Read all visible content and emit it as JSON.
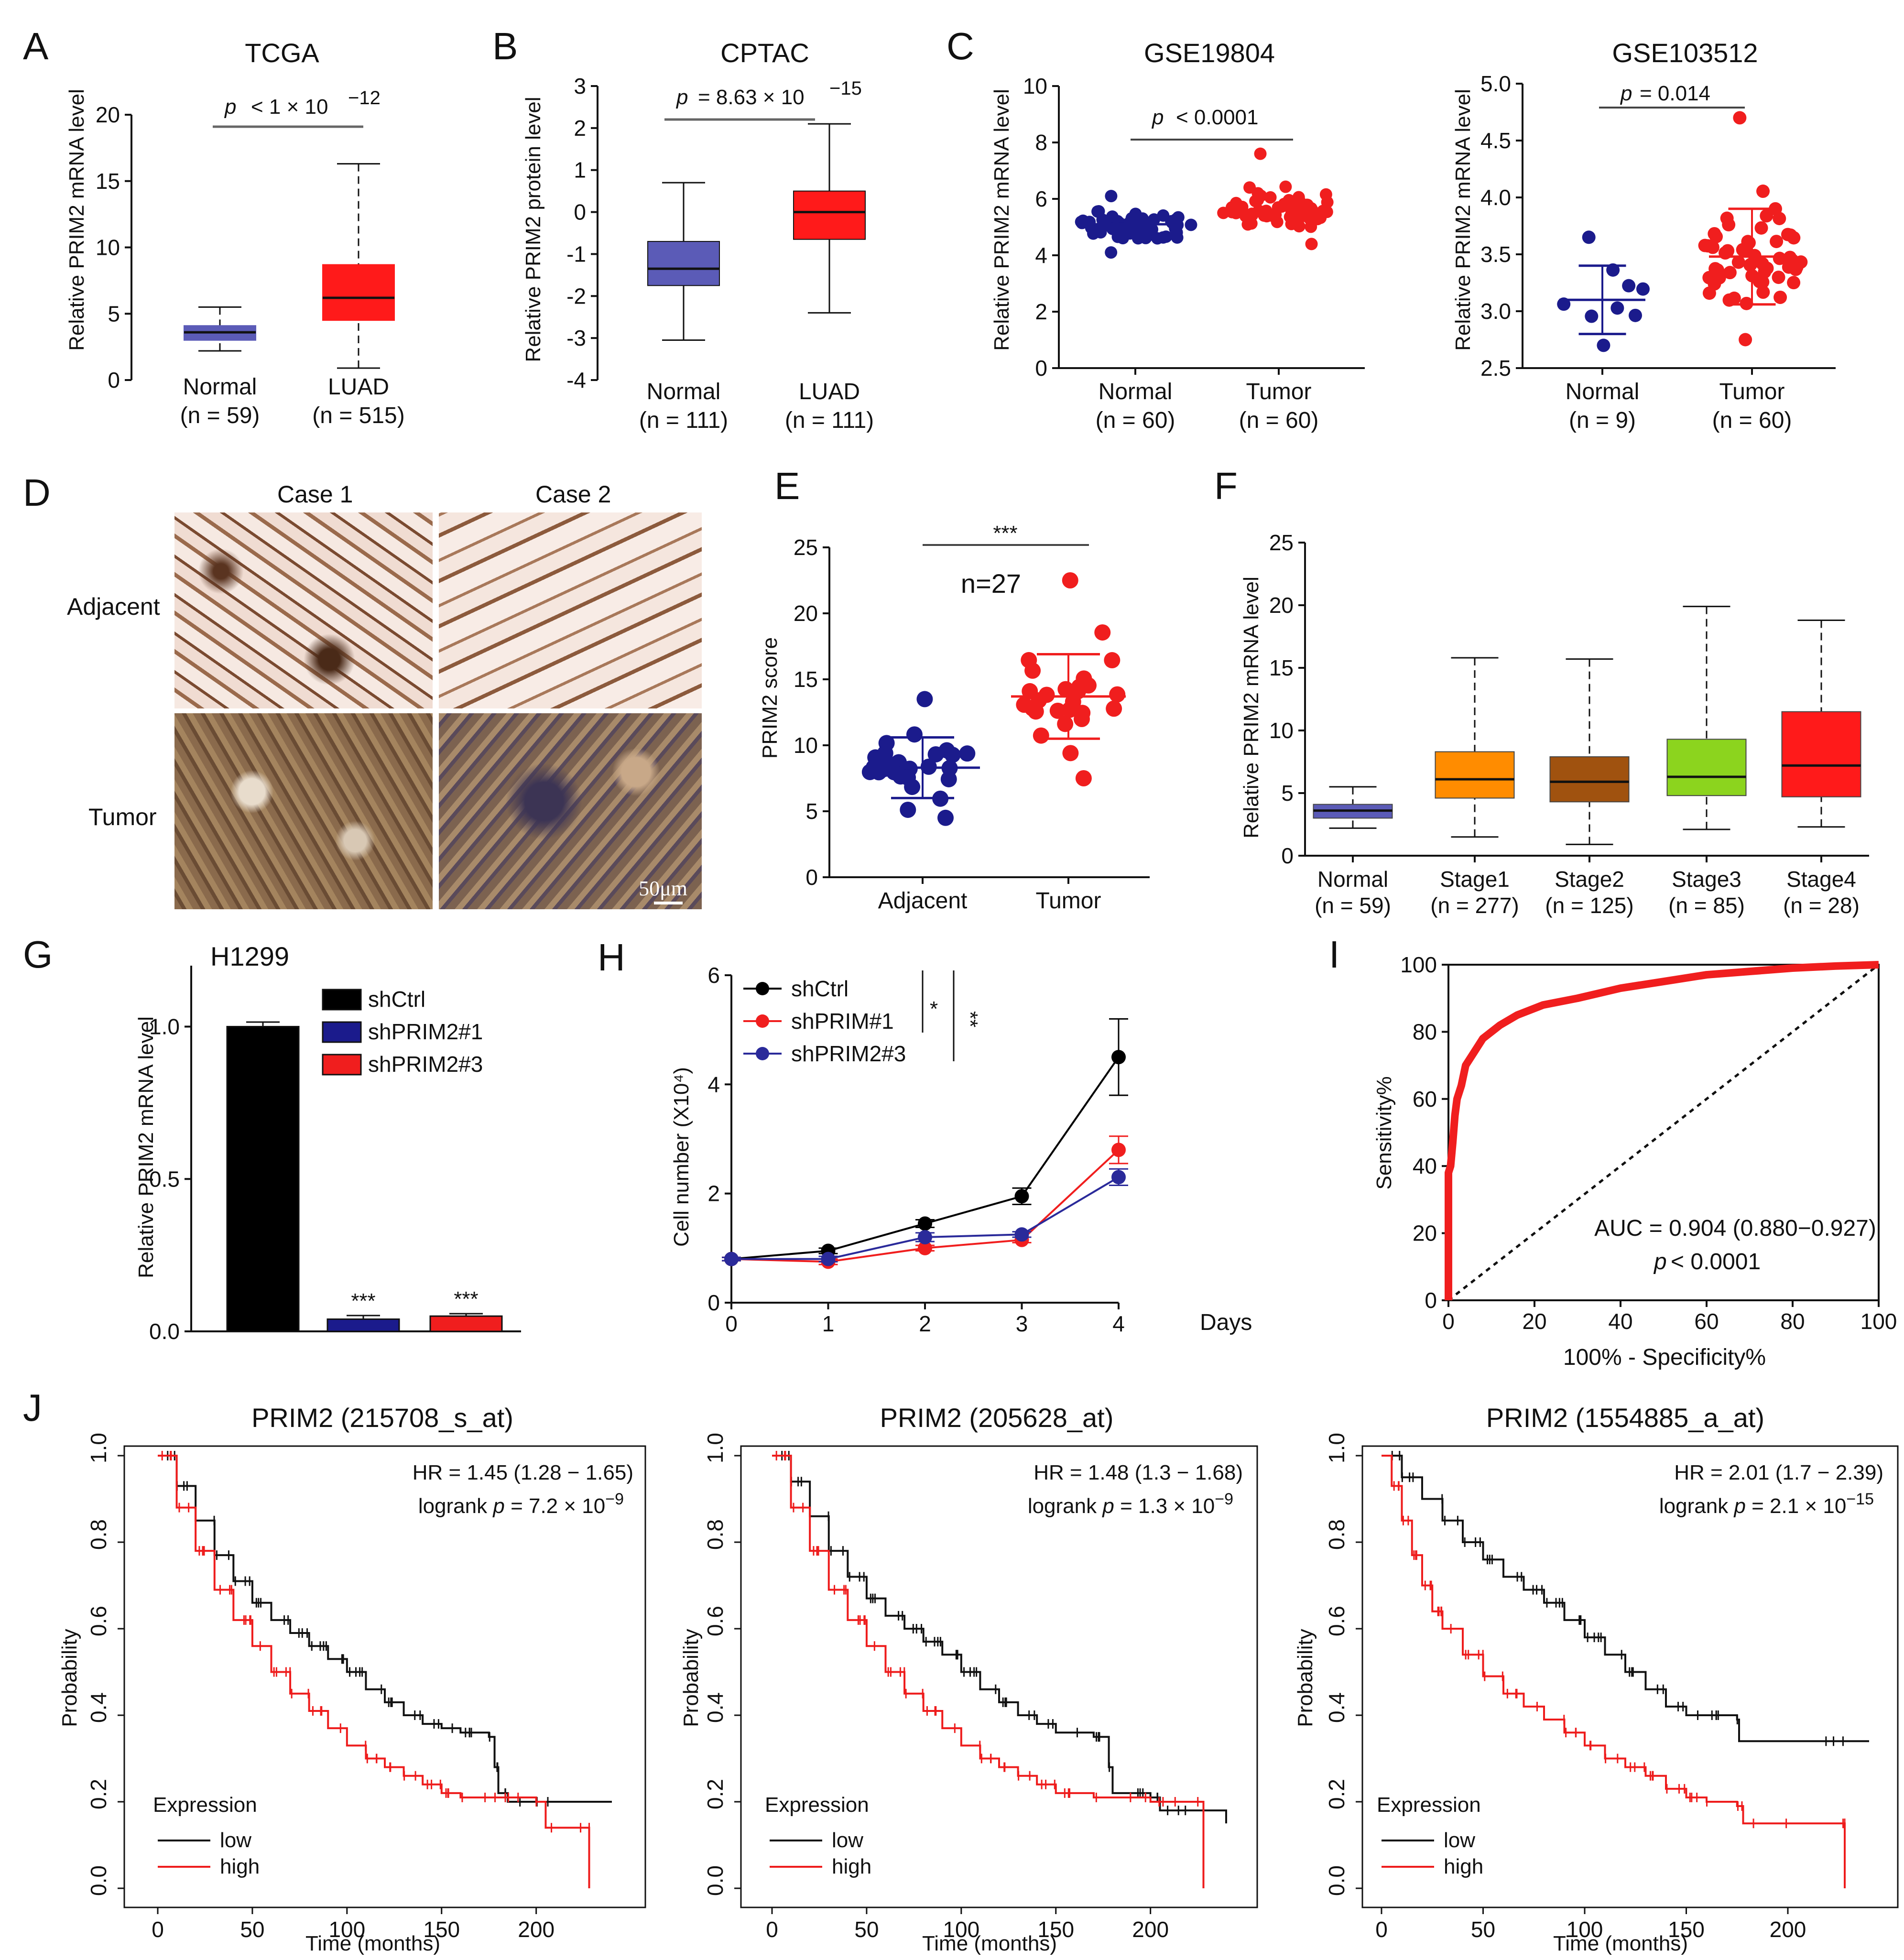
{
  "labels": {
    "A": "A",
    "B": "B",
    "C": "C",
    "D": "D",
    "E": "E",
    "F": "F",
    "G": "G",
    "H": "H",
    "I": "I",
    "J": "J"
  },
  "chart_data": [
    {
      "id": "A",
      "type": "box",
      "title": "TCGA",
      "ylabel": "Relative PRIM2 mRNA level",
      "ylim": [
        0,
        20
      ],
      "yticks": [
        0,
        5,
        10,
        15,
        20
      ],
      "groups": [
        {
          "name": "Normal",
          "n": "(n = 59)",
          "min": 2.2,
          "q1": 3.0,
          "median": 3.6,
          "q3": 4.1,
          "max": 5.5,
          "color": "#5b5bb7"
        },
        {
          "name": "LUAD",
          "n": "(n = 515)",
          "min": 0.9,
          "q1": 4.5,
          "median": 6.2,
          "q3": 8.7,
          "max": 16.3,
          "color": "#ff1a1a"
        }
      ],
      "pvalue": {
        "p": "p",
        "text": "< 1 × 10",
        "exp": "−12"
      }
    },
    {
      "id": "B",
      "type": "box",
      "title": "CPTAC",
      "ylabel": "Relative PRIM2 protein level",
      "ylim": [
        -4,
        3
      ],
      "yticks": [
        -4,
        -3,
        -2,
        -1,
        0,
        1,
        2,
        3
      ],
      "groups": [
        {
          "name": "Normal",
          "n": "(n = 111)",
          "min": -3.05,
          "q1": -1.75,
          "median": -1.35,
          "q3": -0.7,
          "max": 0.7,
          "color": "#5b5bb7"
        },
        {
          "name": "LUAD",
          "n": "(n = 111)",
          "min": -2.4,
          "q1": -0.65,
          "median": 0.0,
          "q3": 0.5,
          "max": 2.1,
          "color": "#ff1a1a"
        }
      ],
      "pvalue": {
        "p": "p",
        "text": "= 8.63 × 10",
        "exp": "−15"
      }
    },
    {
      "id": "C1",
      "type": "scatter",
      "title": "GSE19804",
      "ylabel": "Relative PRIM2 mRNA level",
      "ylim": [
        0,
        10
      ],
      "yticks": [
        0,
        2,
        4,
        6,
        8,
        10
      ],
      "groups": [
        {
          "name": "Normal",
          "n": "(n = 60)",
          "mean": 5.1,
          "sd": 0.4,
          "min": 4.1,
          "max": 6.1,
          "count": 60,
          "color": "#1b1b8c"
        },
        {
          "name": "Tumor",
          "n": "(n = 60)",
          "mean": 5.6,
          "sd": 0.6,
          "min": 4.4,
          "max": 7.6,
          "count": 60,
          "color": "#f01e1e"
        }
      ],
      "pvalue": {
        "p": "p",
        "text": "< 0.0001"
      }
    },
    {
      "id": "C2",
      "type": "scatter",
      "title": "GSE103512",
      "ylabel": "Relative PRIM2 mRNA level",
      "ylim": [
        2.5,
        5.0
      ],
      "yticks": [
        2.5,
        3.0,
        3.5,
        4.0,
        4.5,
        5.0
      ],
      "groups": [
        {
          "name": "Normal",
          "n": "(n = 9)",
          "mean": 3.1,
          "sd": 0.3,
          "min": 2.7,
          "max": 3.65,
          "count": 9,
          "color": "#1b1b8c"
        },
        {
          "name": "Tumor",
          "n": "(n = 60)",
          "mean": 3.48,
          "sd": 0.42,
          "min": 2.75,
          "max": 4.7,
          "count": 60,
          "color": "#f01e1e"
        }
      ],
      "pvalue": {
        "p": "p",
        "text": "= 0.014"
      }
    },
    {
      "id": "E",
      "type": "scatter",
      "ylabel": "PRIM2 score",
      "ylim": [
        0,
        25
      ],
      "yticks": [
        0,
        5,
        10,
        15,
        20,
        25
      ],
      "groups": [
        {
          "name": "Adjacent",
          "mean": 8.3,
          "sd": 2.3,
          "min": 4.5,
          "max": 13.5,
          "count": 27,
          "color": "#1b1b8c"
        },
        {
          "name": "Tumor",
          "mean": 13.7,
          "sd": 3.2,
          "min": 7.5,
          "max": 22.5,
          "count": 27,
          "color": "#f01e1e"
        }
      ],
      "sig": "***",
      "note": "n=27"
    },
    {
      "id": "F",
      "type": "box",
      "ylabel": "Relative PRIM2 mRNA level",
      "ylim": [
        0,
        25
      ],
      "yticks": [
        0,
        5,
        10,
        15,
        20,
        25
      ],
      "groups": [
        {
          "name": "Normal",
          "n": "(n = 59)",
          "min": 2.2,
          "q1": 3.0,
          "median": 3.6,
          "q3": 4.1,
          "max": 5.5,
          "color": "#5b5bb7"
        },
        {
          "name": "Stage1",
          "n": "(n = 277)",
          "min": 1.5,
          "q1": 4.6,
          "median": 6.1,
          "q3": 8.3,
          "max": 15.8,
          "color": "#ff8c00"
        },
        {
          "name": "Stage2",
          "n": "(n = 125)",
          "min": 0.9,
          "q1": 4.3,
          "median": 5.9,
          "q3": 7.9,
          "max": 15.7,
          "color": "#a0520f"
        },
        {
          "name": "Stage3",
          "n": "(n = 85)",
          "min": 2.1,
          "q1": 4.8,
          "median": 6.3,
          "q3": 9.3,
          "max": 19.9,
          "color": "#8cd41e"
        },
        {
          "name": "Stage4",
          "n": "(n = 28)",
          "min": 2.3,
          "q1": 4.7,
          "median": 7.2,
          "q3": 11.5,
          "max": 18.8,
          "color": "#ff1a1a"
        }
      ]
    },
    {
      "id": "G",
      "type": "bar",
      "title": "H1299",
      "ylabel": "Relative PRIM2 mRNA level",
      "ylim": [
        0,
        1.2
      ],
      "yticks": [
        0.0,
        0.5,
        1.0
      ],
      "categories": [
        "shCtrl",
        "shPRIM2#1",
        "shPRIM2#3"
      ],
      "values": [
        1.0,
        0.04,
        0.05
      ],
      "errors": [
        0.015,
        0.012,
        0.008
      ],
      "colors": [
        "#000000",
        "#1b1b8c",
        "#f01e1e"
      ],
      "sig": [
        "",
        "***",
        "***"
      ]
    },
    {
      "id": "H",
      "type": "line",
      "ylabel": "Cell number (X10⁴)",
      "xlabel": "Days",
      "x": [
        0,
        1,
        2,
        3,
        4
      ],
      "ylim": [
        0,
        6
      ],
      "yticks": [
        0,
        2,
        4,
        6
      ],
      "series": [
        {
          "name": "shCtrl",
          "values": [
            0.8,
            0.95,
            1.45,
            1.95,
            4.5
          ],
          "errors": [
            0.03,
            0.05,
            0.07,
            0.15,
            0.7
          ],
          "color": "#000000"
        },
        {
          "name": "shPRIM#1",
          "values": [
            0.8,
            0.75,
            1.0,
            1.15,
            2.8
          ],
          "errors": [
            0.03,
            0.05,
            0.05,
            0.05,
            0.25
          ],
          "color": "#f01e1e"
        },
        {
          "name": "shPRIM2#3",
          "values": [
            0.8,
            0.8,
            1.2,
            1.25,
            2.3
          ],
          "errors": [
            0.03,
            0.05,
            0.08,
            0.05,
            0.15
          ],
          "color": "#2a2a9a"
        }
      ],
      "sig": [
        "*",
        "**"
      ]
    },
    {
      "id": "I",
      "type": "roc",
      "ylabel": "Sensitivity%",
      "xlabel": "100% - Specificity%",
      "xlim": [
        0,
        100
      ],
      "ylim": [
        0,
        100
      ],
      "xticks": [
        0,
        20,
        40,
        60,
        80,
        100
      ],
      "yticks": [
        0,
        20,
        40,
        60,
        80,
        100
      ],
      "auc": "AUC = 0.904 (0.880−0.927)",
      "pvalue": {
        "p": "p",
        "text": "< 0.0001"
      },
      "curve": [
        [
          0,
          0
        ],
        [
          0,
          38
        ],
        [
          0.5,
          40
        ],
        [
          1,
          47
        ],
        [
          1.5,
          55
        ],
        [
          2,
          60
        ],
        [
          3,
          64
        ],
        [
          4,
          70
        ],
        [
          6,
          74
        ],
        [
          8,
          78
        ],
        [
          12,
          82
        ],
        [
          16,
          85
        ],
        [
          22,
          88
        ],
        [
          30,
          90
        ],
        [
          40,
          93
        ],
        [
          50,
          95
        ],
        [
          60,
          97
        ],
        [
          70,
          98
        ],
        [
          80,
          99
        ],
        [
          90,
          99.6
        ],
        [
          100,
          100
        ]
      ]
    },
    {
      "id": "J1",
      "type": "km",
      "title": "PRIM2 (215708_s_at)",
      "xlabel": "Time (months)",
      "ylabel": "Probability",
      "xlim": [
        0,
        240
      ],
      "ylim": [
        0,
        1
      ],
      "xticks": [
        0,
        50,
        100,
        150,
        200
      ],
      "yticks": [
        0.0,
        0.2,
        0.4,
        0.6,
        0.8,
        1.0
      ],
      "hr": "HR = 1.45 (1.28 − 1.65)",
      "logrank": {
        "label": "logrank",
        "p": "p",
        "text": "= 7.2 × 10",
        "exp": "−9"
      },
      "legend": {
        "title": "Expression",
        "low": "low",
        "high": "high"
      },
      "low": [
        [
          0,
          1
        ],
        [
          10,
          0.93
        ],
        [
          20,
          0.85
        ],
        [
          30,
          0.77
        ],
        [
          40,
          0.71
        ],
        [
          50,
          0.66
        ],
        [
          60,
          0.62
        ],
        [
          70,
          0.59
        ],
        [
          80,
          0.56
        ],
        [
          90,
          0.53
        ],
        [
          100,
          0.5
        ],
        [
          110,
          0.46
        ],
        [
          120,
          0.43
        ],
        [
          130,
          0.4
        ],
        [
          140,
          0.38
        ],
        [
          150,
          0.37
        ],
        [
          160,
          0.36
        ],
        [
          175,
          0.35
        ],
        [
          178,
          0.28
        ],
        [
          180,
          0.22
        ],
        [
          185,
          0.2
        ],
        [
          240,
          0.2
        ]
      ],
      "high": [
        [
          0,
          1
        ],
        [
          10,
          0.88
        ],
        [
          20,
          0.78
        ],
        [
          30,
          0.69
        ],
        [
          40,
          0.62
        ],
        [
          50,
          0.56
        ],
        [
          60,
          0.5
        ],
        [
          70,
          0.45
        ],
        [
          80,
          0.41
        ],
        [
          90,
          0.37
        ],
        [
          100,
          0.33
        ],
        [
          110,
          0.3
        ],
        [
          120,
          0.28
        ],
        [
          130,
          0.26
        ],
        [
          140,
          0.24
        ],
        [
          150,
          0.22
        ],
        [
          160,
          0.21
        ],
        [
          180,
          0.21
        ],
        [
          200,
          0.2
        ],
        [
          205,
          0.14
        ],
        [
          228,
          0.14
        ],
        [
          228,
          0.0
        ]
      ]
    },
    {
      "id": "J2",
      "type": "km",
      "title": "PRIM2 (205628_at)",
      "xlabel": "Time (months)",
      "ylabel": "Probability",
      "xlim": [
        0,
        240
      ],
      "ylim": [
        0,
        1
      ],
      "xticks": [
        0,
        50,
        100,
        150,
        200
      ],
      "yticks": [
        0.0,
        0.2,
        0.4,
        0.6,
        0.8,
        1.0
      ],
      "hr": "HR = 1.48 (1.3 − 1.68)",
      "logrank": {
        "label": "logrank",
        "p": "p",
        "text": "= 1.3 × 10",
        "exp": "−9"
      },
      "legend": {
        "title": "Expression",
        "low": "low",
        "high": "high"
      },
      "low": [
        [
          0,
          1
        ],
        [
          10,
          0.94
        ],
        [
          20,
          0.86
        ],
        [
          30,
          0.78
        ],
        [
          40,
          0.72
        ],
        [
          50,
          0.67
        ],
        [
          60,
          0.63
        ],
        [
          70,
          0.6
        ],
        [
          80,
          0.57
        ],
        [
          90,
          0.54
        ],
        [
          100,
          0.5
        ],
        [
          110,
          0.46
        ],
        [
          120,
          0.43
        ],
        [
          130,
          0.4
        ],
        [
          140,
          0.38
        ],
        [
          150,
          0.36
        ],
        [
          170,
          0.35
        ],
        [
          178,
          0.28
        ],
        [
          180,
          0.22
        ],
        [
          200,
          0.21
        ],
        [
          205,
          0.18
        ],
        [
          240,
          0.15
        ]
      ],
      "high": [
        [
          0,
          1
        ],
        [
          10,
          0.88
        ],
        [
          20,
          0.78
        ],
        [
          30,
          0.69
        ],
        [
          40,
          0.62
        ],
        [
          50,
          0.56
        ],
        [
          60,
          0.5
        ],
        [
          70,
          0.45
        ],
        [
          80,
          0.41
        ],
        [
          90,
          0.37
        ],
        [
          100,
          0.33
        ],
        [
          110,
          0.3
        ],
        [
          120,
          0.28
        ],
        [
          130,
          0.26
        ],
        [
          140,
          0.24
        ],
        [
          150,
          0.22
        ],
        [
          170,
          0.21
        ],
        [
          200,
          0.2
        ],
        [
          225,
          0.2
        ],
        [
          228,
          0.0
        ]
      ]
    },
    {
      "id": "J3",
      "type": "km",
      "title": "PRIM2 (1554885_a_at)",
      "xlabel": "Time (months)",
      "ylabel": "Probability",
      "xlim": [
        0,
        240
      ],
      "ylim": [
        0,
        1
      ],
      "xticks": [
        0,
        50,
        100,
        150,
        200
      ],
      "yticks": [
        0.0,
        0.2,
        0.4,
        0.6,
        0.8,
        1.0
      ],
      "hr": "HR = 2.01 (1.7 − 2.39)",
      "logrank": {
        "label": "logrank",
        "p": "p",
        "text": "= 2.1 × 10",
        "exp": "−15"
      },
      "legend": {
        "title": "Expression",
        "low": "low",
        "high": "high"
      },
      "low": [
        [
          0,
          1
        ],
        [
          10,
          0.95
        ],
        [
          20,
          0.9
        ],
        [
          30,
          0.85
        ],
        [
          40,
          0.8
        ],
        [
          50,
          0.76
        ],
        [
          60,
          0.72
        ],
        [
          70,
          0.69
        ],
        [
          80,
          0.66
        ],
        [
          90,
          0.62
        ],
        [
          100,
          0.58
        ],
        [
          110,
          0.54
        ],
        [
          120,
          0.5
        ],
        [
          130,
          0.46
        ],
        [
          140,
          0.42
        ],
        [
          150,
          0.4
        ],
        [
          160,
          0.4
        ],
        [
          175,
          0.39
        ],
        [
          176,
          0.34
        ],
        [
          240,
          0.34
        ]
      ],
      "high": [
        [
          0,
          1
        ],
        [
          5,
          0.93
        ],
        [
          10,
          0.85
        ],
        [
          15,
          0.77
        ],
        [
          20,
          0.7
        ],
        [
          25,
          0.64
        ],
        [
          30,
          0.6
        ],
        [
          40,
          0.54
        ],
        [
          50,
          0.49
        ],
        [
          60,
          0.45
        ],
        [
          70,
          0.42
        ],
        [
          80,
          0.39
        ],
        [
          90,
          0.36
        ],
        [
          100,
          0.33
        ],
        [
          110,
          0.3
        ],
        [
          120,
          0.28
        ],
        [
          130,
          0.26
        ],
        [
          140,
          0.23
        ],
        [
          150,
          0.21
        ],
        [
          160,
          0.2
        ],
        [
          175,
          0.19
        ],
        [
          178,
          0.15
        ],
        [
          228,
          0.15
        ],
        [
          228,
          0.0
        ]
      ]
    }
  ],
  "ihc": {
    "cols": [
      "Case 1",
      "Case 2"
    ],
    "rows": [
      "Adjacent",
      "Tumor"
    ],
    "scale": "50μm"
  }
}
